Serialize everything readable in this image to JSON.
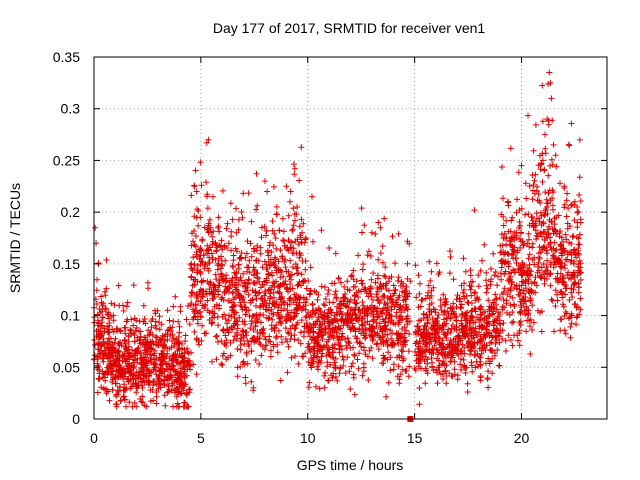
{
  "chart_data": {
    "type": "scatter",
    "title": "Day 177 of 2017, SRMTID for receiver ven1",
    "xlabel": "GPS time / hours",
    "ylabel": "SRMTID / TECUs",
    "xlim": [
      0,
      24
    ],
    "ylim": [
      0,
      0.35
    ],
    "xticks": [
      0,
      5,
      10,
      15,
      20
    ],
    "yticks": [
      0,
      0.05,
      0.1,
      0.15,
      0.2,
      0.25,
      0.3,
      0.35
    ],
    "xtick_labels": [
      "0",
      "5",
      "10",
      "15",
      "20"
    ],
    "ytick_labels": [
      "0",
      "0.05",
      "0.1",
      "0.15",
      "0.2",
      "0.25",
      "0.3",
      "0.35"
    ],
    "grid": true,
    "marker": "+",
    "color": "#e00000",
    "series": [
      {
        "name": "SRMTID",
        "segments": [
          {
            "x_start": 0.0,
            "x_end": 0.15,
            "mean": 0.09,
            "spread": 0.05,
            "count": 14
          },
          {
            "x_start": 0.15,
            "x_end": 1.0,
            "mean": 0.065,
            "spread": 0.028,
            "count": 170
          },
          {
            "x_start": 1.0,
            "x_end": 2.0,
            "mean": 0.052,
            "spread": 0.025,
            "count": 200
          },
          {
            "x_start": 2.0,
            "x_end": 3.5,
            "mean": 0.055,
            "spread": 0.025,
            "count": 260
          },
          {
            "x_start": 3.5,
            "x_end": 4.5,
            "mean": 0.05,
            "spread": 0.03,
            "count": 180
          },
          {
            "x_start": 4.5,
            "x_end": 6.0,
            "mean": 0.135,
            "spread": 0.045,
            "count": 240
          },
          {
            "x_start": 6.0,
            "x_end": 8.0,
            "mean": 0.11,
            "spread": 0.04,
            "count": 320
          },
          {
            "x_start": 8.0,
            "x_end": 10.0,
            "mean": 0.12,
            "spread": 0.045,
            "count": 320
          },
          {
            "x_start": 10.0,
            "x_end": 12.0,
            "mean": 0.085,
            "spread": 0.03,
            "count": 320
          },
          {
            "x_start": 12.0,
            "x_end": 14.8,
            "mean": 0.095,
            "spread": 0.035,
            "count": 420
          },
          {
            "x_start": 15.0,
            "x_end": 17.0,
            "mean": 0.075,
            "spread": 0.028,
            "count": 320
          },
          {
            "x_start": 17.0,
            "x_end": 19.0,
            "mean": 0.085,
            "spread": 0.03,
            "count": 320
          },
          {
            "x_start": 19.0,
            "x_end": 20.5,
            "mean": 0.14,
            "spread": 0.045,
            "count": 240
          },
          {
            "x_start": 20.5,
            "x_end": 21.5,
            "mean": 0.17,
            "spread": 0.05,
            "count": 160
          },
          {
            "x_start": 21.5,
            "x_end": 22.8,
            "mean": 0.15,
            "spread": 0.04,
            "count": 200
          }
        ],
        "peaks": [
          {
            "x": 0.05,
            "y": 0.185
          },
          {
            "x": 0.1,
            "y": 0.17
          },
          {
            "x": 0.2,
            "y": 0.15
          },
          {
            "x": 4.7,
            "y": 0.225
          },
          {
            "x": 4.8,
            "y": 0.22
          },
          {
            "x": 8.0,
            "y": 0.23
          },
          {
            "x": 8.1,
            "y": 0.22
          },
          {
            "x": 9.0,
            "y": 0.225
          },
          {
            "x": 9.2,
            "y": 0.22
          },
          {
            "x": 9.4,
            "y": 0.242
          },
          {
            "x": 9.5,
            "y": 0.205
          },
          {
            "x": 10.2,
            "y": 0.215
          },
          {
            "x": 13.0,
            "y": 0.18
          },
          {
            "x": 13.3,
            "y": 0.19
          },
          {
            "x": 13.4,
            "y": 0.185
          },
          {
            "x": 20.0,
            "y": 0.245
          },
          {
            "x": 20.2,
            "y": 0.228
          },
          {
            "x": 21.0,
            "y": 0.25
          },
          {
            "x": 21.1,
            "y": 0.275
          },
          {
            "x": 21.2,
            "y": 0.29
          },
          {
            "x": 21.3,
            "y": 0.335
          },
          {
            "x": 21.35,
            "y": 0.325
          },
          {
            "x": 21.4,
            "y": 0.31
          },
          {
            "x": 21.5,
            "y": 0.265
          },
          {
            "x": 21.6,
            "y": 0.255
          },
          {
            "x": 21.8,
            "y": 0.228
          },
          {
            "x": 22.0,
            "y": 0.225
          },
          {
            "x": 22.5,
            "y": 0.21
          },
          {
            "x": 22.6,
            "y": 0.205
          }
        ],
        "zero_marker": {
          "x": 14.8,
          "y": 0.0
        }
      }
    ]
  }
}
